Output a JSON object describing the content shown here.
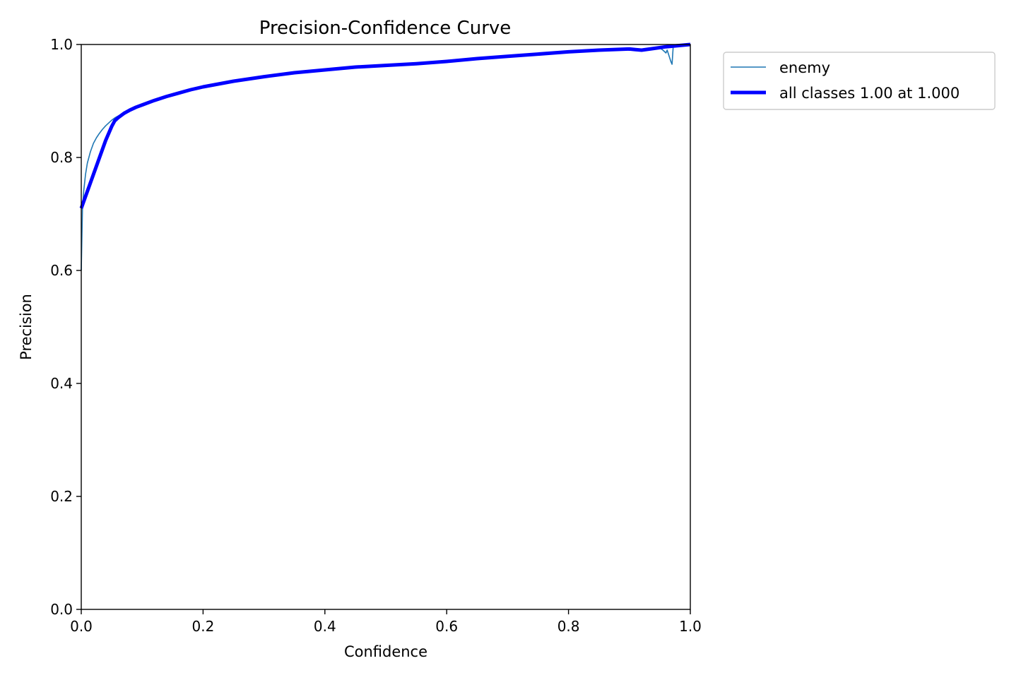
{
  "chart_data": {
    "type": "line",
    "title": "Precision-Confidence Curve",
    "xlabel": "Confidence",
    "ylabel": "Precision",
    "xlim": [
      0,
      1
    ],
    "ylim": [
      0,
      1
    ],
    "grid": false,
    "legend_placement": "outside-top-right",
    "xticks": [
      0.0,
      0.2,
      0.4,
      0.6,
      0.8,
      1.0
    ],
    "yticks": [
      0.0,
      0.2,
      0.4,
      0.6,
      0.8,
      1.0
    ],
    "xtick_labels": [
      "0.0",
      "0.2",
      "0.4",
      "0.6",
      "0.8",
      "1.0"
    ],
    "ytick_labels": [
      "0.0",
      "0.2",
      "0.4",
      "0.6",
      "0.8",
      "1.0"
    ],
    "series": [
      {
        "name": "enemy",
        "color": "#1f77b4",
        "line_width": "thin",
        "x": [
          0.0,
          0.002,
          0.004,
          0.007,
          0.01,
          0.015,
          0.02,
          0.025,
          0.03,
          0.035,
          0.04,
          0.045,
          0.05,
          0.055,
          0.06,
          0.065,
          0.07,
          0.075,
          0.08,
          0.09,
          0.1,
          0.12,
          0.14,
          0.16,
          0.2,
          0.3,
          0.4,
          0.5,
          0.6,
          0.7,
          0.8,
          0.88,
          0.92,
          0.95,
          0.955,
          0.96,
          0.962,
          0.965,
          0.968,
          0.97,
          0.972,
          0.975,
          0.98,
          0.99,
          1.0
        ],
        "y": [
          0.6,
          0.71,
          0.74,
          0.77,
          0.79,
          0.81,
          0.825,
          0.835,
          0.843,
          0.85,
          0.856,
          0.861,
          0.866,
          0.87,
          0.873,
          0.876,
          0.879,
          0.881,
          0.883,
          0.887,
          0.891,
          0.9,
          0.908,
          0.914,
          0.925,
          0.943,
          0.955,
          0.962,
          0.97,
          0.979,
          0.987,
          0.992,
          0.992,
          0.994,
          0.99,
          0.985,
          0.99,
          0.98,
          0.97,
          0.965,
          0.998,
          0.996,
          0.998,
          0.999,
          1.0
        ]
      },
      {
        "name": "all classes 1.00 at 1.000",
        "color": "#0000ff",
        "line_width": "thick",
        "x": [
          0.0,
          0.01,
          0.02,
          0.03,
          0.04,
          0.05,
          0.055,
          0.06,
          0.07,
          0.08,
          0.09,
          0.1,
          0.12,
          0.14,
          0.16,
          0.18,
          0.2,
          0.25,
          0.3,
          0.35,
          0.4,
          0.45,
          0.5,
          0.55,
          0.6,
          0.65,
          0.7,
          0.75,
          0.8,
          0.85,
          0.9,
          0.91,
          0.92,
          0.94,
          0.96,
          0.98,
          1.0
        ],
        "y": [
          0.71,
          0.74,
          0.77,
          0.8,
          0.83,
          0.855,
          0.865,
          0.87,
          0.878,
          0.884,
          0.889,
          0.893,
          0.901,
          0.908,
          0.914,
          0.92,
          0.925,
          0.935,
          0.943,
          0.95,
          0.955,
          0.96,
          0.963,
          0.966,
          0.97,
          0.975,
          0.979,
          0.983,
          0.987,
          0.99,
          0.992,
          0.991,
          0.99,
          0.993,
          0.996,
          0.998,
          1.0
        ]
      }
    ]
  }
}
